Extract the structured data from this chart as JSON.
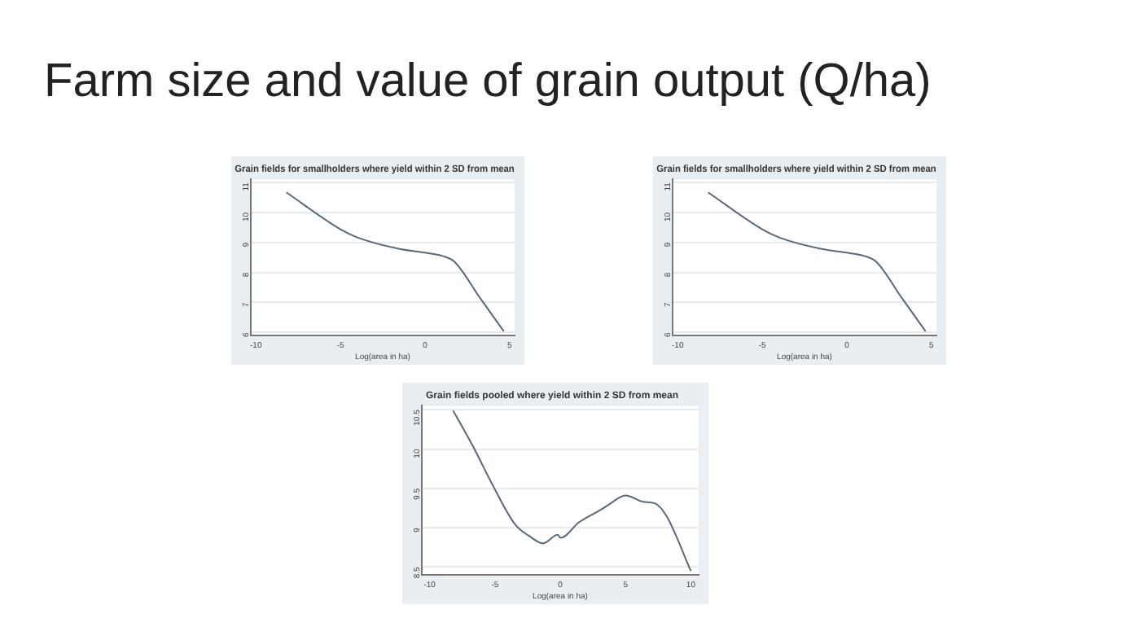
{
  "chart_data": [
    {
      "type": "line",
      "title": "Grain fields for smallholders where yield within 2 SD from mean",
      "xlabel": "Log(area in ha)",
      "annotations": [
        "Farm size and value of grain output (Q/ha)"
      ],
      "xlim": [
        -10.3,
        5.3
      ],
      "xticks": [
        -10,
        -5,
        0,
        5
      ],
      "ylim": [
        5.9,
        11.1
      ],
      "yticks": [
        6,
        7,
        8,
        9,
        10,
        11
      ],
      "grid": "y",
      "marker": "none",
      "series": [
        {
          "color": "#5a6878",
          "x": [
            -8.2,
            -5.0,
            -3.97,
            -1.55,
            0,
            1.03,
            1.72,
            3.28,
            4.66
          ],
          "values": [
            10.67,
            9.44,
            9.16,
            8.79,
            8.66,
            8.55,
            8.37,
            7.13,
            6.04
          ]
        }
      ]
    },
    {
      "type": "line",
      "title": "Grain fields for smallholders where yield within 2 SD from mean",
      "xlabel": "Log(area in ha)",
      "xlim": [
        -10.3,
        5.3
      ],
      "xticks": [
        -10,
        -5,
        0,
        5
      ],
      "ylim": [
        5.9,
        11.1
      ],
      "yticks": [
        6,
        7,
        8,
        9,
        10,
        11
      ],
      "grid": "y",
      "marker": "none",
      "series": [
        {
          "color": "#5a6878",
          "x": [
            -8.2,
            -5.0,
            -3.97,
            -1.55,
            0,
            1.03,
            1.72,
            3.28,
            4.66
          ],
          "values": [
            10.67,
            9.44,
            9.16,
            8.79,
            8.66,
            8.55,
            8.37,
            7.13,
            6.04
          ]
        }
      ]
    },
    {
      "type": "line",
      "title": "Grain fields pooled where yield within 2 SD from mean",
      "xlabel": "Log(area in ha)",
      "xlim": [
        -10.6,
        10.6
      ],
      "xticks": [
        -10,
        -5,
        0,
        5,
        10
      ],
      "ylim": [
        8.4,
        10.55
      ],
      "yticks": [
        8.5,
        9,
        9.5,
        10,
        10.5
      ],
      "grid": "y",
      "marker": "none",
      "series": [
        {
          "color": "#5a6878",
          "x": [
            -8.2,
            -6.57,
            -5.23,
            -3.45,
            -2.34,
            -1.31,
            -0.2,
            0.02,
            1.45,
            3.23,
            3.68,
            5.01,
            6.35,
            7.24,
            8.13,
            10.0
          ],
          "values": [
            10.49,
            10.0,
            9.56,
            9.04,
            8.89,
            8.8,
            8.91,
            8.87,
            9.07,
            9.24,
            9.29,
            9.41,
            9.33,
            9.31,
            9.15,
            8.45
          ]
        }
      ]
    }
  ]
}
